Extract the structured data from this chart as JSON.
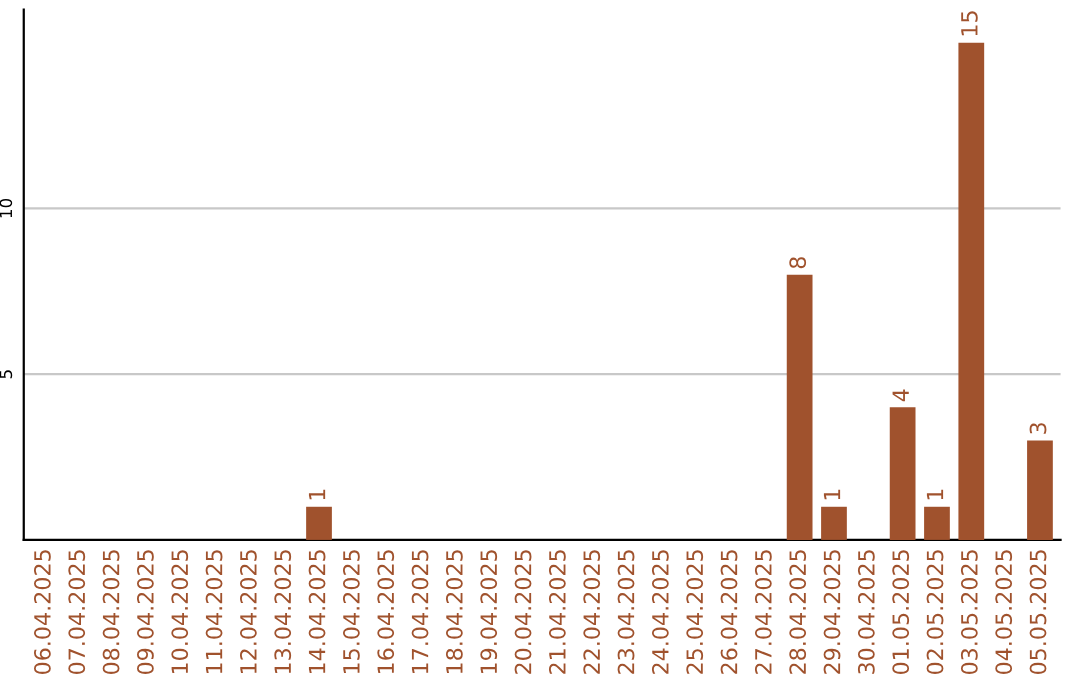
{
  "chart_data": {
    "type": "bar",
    "categories": [
      "06.04.2025",
      "07.04.2025",
      "08.04.2025",
      "09.04.2025",
      "10.04.2025",
      "11.04.2025",
      "12.04.2025",
      "13.04.2025",
      "14.04.2025",
      "15.04.2025",
      "16.04.2025",
      "17.04.2025",
      "18.04.2025",
      "19.04.2025",
      "20.04.2025",
      "21.04.2025",
      "22.04.2025",
      "23.04.2025",
      "24.04.2025",
      "25.04.2025",
      "26.04.2025",
      "27.04.2025",
      "28.04.2025",
      "29.04.2025",
      "30.04.2025",
      "01.05.2025",
      "02.05.2025",
      "03.05.2025",
      "04.05.2025",
      "05.05.2025"
    ],
    "values": [
      0,
      0,
      0,
      0,
      0,
      0,
      0,
      0,
      1,
      0,
      0,
      0,
      0,
      0,
      0,
      0,
      0,
      0,
      0,
      0,
      0,
      0,
      8,
      1,
      0,
      4,
      1,
      15,
      0,
      3
    ],
    "value_labels": [
      null,
      null,
      null,
      null,
      null,
      null,
      null,
      null,
      "1",
      null,
      null,
      null,
      null,
      null,
      null,
      null,
      null,
      null,
      null,
      null,
      null,
      null,
      "8",
      "1",
      null,
      "4",
      "1",
      "15",
      null,
      "3"
    ],
    "color": "#a0522d",
    "ylim": [
      0,
      16
    ],
    "yticks": [
      5,
      10
    ],
    "grid": "y"
  }
}
